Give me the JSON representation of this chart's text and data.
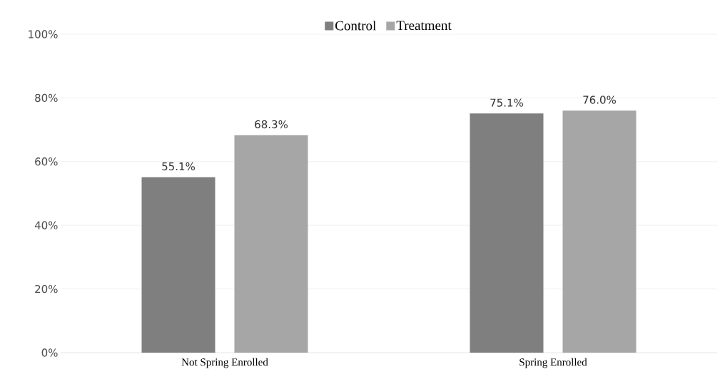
{
  "chart_data": {
    "type": "bar",
    "categories": [
      "Not Spring Enrolled",
      "Spring Enrolled"
    ],
    "series": [
      {
        "name": "Control",
        "color": "#7f7f7f",
        "values": [
          55.1,
          75.1
        ],
        "value_labels": [
          "55.1%",
          "75.1%"
        ]
      },
      {
        "name": "Treatment",
        "color": "#a6a6a6",
        "values": [
          68.3,
          76.0
        ],
        "value_labels": [
          "68.3%",
          "76.0%"
        ]
      }
    ],
    "ylim": [
      0,
      100
    ],
    "yticks": [
      {
        "value": 0,
        "label": "0%"
      },
      {
        "value": 20,
        "label": "20%"
      },
      {
        "value": 40,
        "label": "40%"
      },
      {
        "value": 60,
        "label": "60%"
      },
      {
        "value": 80,
        "label": "80%"
      },
      {
        "value": 100,
        "label": "100%"
      }
    ],
    "grid": "y",
    "legend": "top"
  }
}
